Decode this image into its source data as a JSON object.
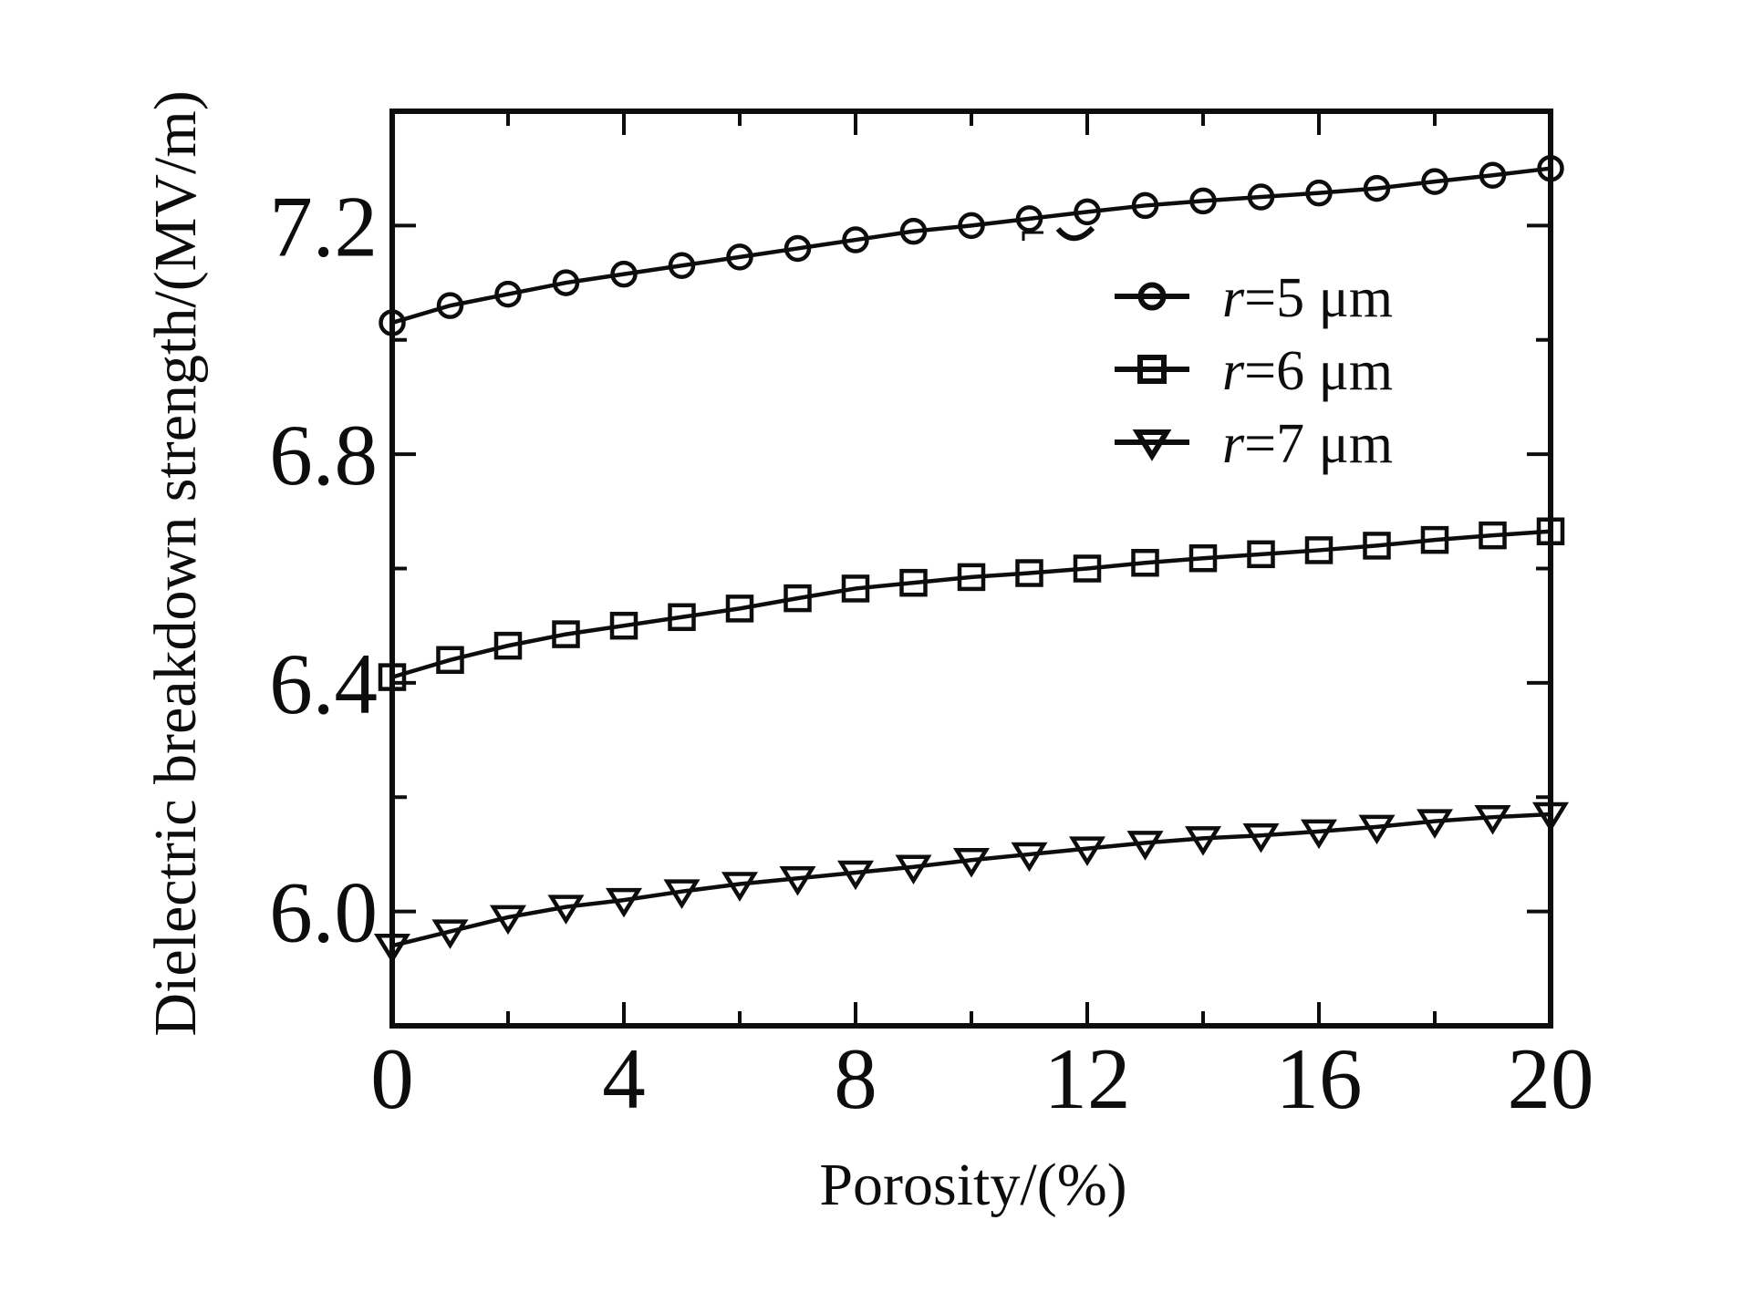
{
  "figure_background": "#ffffff",
  "ink_color": "#0d0d0d",
  "chart_data": {
    "type": "line",
    "title": "",
    "xlabel": "Porosity/(%)",
    "ylabel": "Dielectric breakdown strength/(MV/m)",
    "xlim": [
      0,
      20
    ],
    "ylim": [
      5.8,
      7.4
    ],
    "grid": false,
    "legend_position": "inside-upper-right",
    "x_major_ticks": [
      0,
      4,
      8,
      12,
      16,
      20
    ],
    "x_major_tick_labels": [
      "0",
      "4",
      "8",
      "12",
      "16",
      "20"
    ],
    "x_minor_ticks": [
      2,
      6,
      10,
      14,
      18
    ],
    "y_major_ticks": [
      6.0,
      6.4,
      6.8,
      7.2
    ],
    "y_major_tick_labels": [
      "6.0",
      "6.4",
      "6.8",
      "7.2"
    ],
    "y_minor_ticks": [
      6.2,
      6.6,
      7.0
    ],
    "x": [
      0,
      1,
      2,
      3,
      4,
      5,
      6,
      7,
      8,
      9,
      10,
      11,
      12,
      13,
      14,
      15,
      16,
      17,
      18,
      19,
      20
    ],
    "series": [
      {
        "name": "r=5 um",
        "legend_italic": "r",
        "legend_text": "=5 μm",
        "marker": "circle",
        "values": [
          7.03,
          7.06,
          7.08,
          7.1,
          7.115,
          7.13,
          7.145,
          7.16,
          7.175,
          7.19,
          7.2,
          7.212,
          7.224,
          7.235,
          7.243,
          7.25,
          7.257,
          7.265,
          7.277,
          7.288,
          7.3
        ]
      },
      {
        "name": "r=6 um",
        "legend_italic": "r",
        "legend_text": "=6 μm",
        "marker": "square",
        "values": [
          6.41,
          6.44,
          6.465,
          6.485,
          6.5,
          6.515,
          6.53,
          6.548,
          6.565,
          6.575,
          6.585,
          6.592,
          6.6,
          6.61,
          6.618,
          6.625,
          6.632,
          6.64,
          6.65,
          6.658,
          6.665
        ]
      },
      {
        "name": "r=7 um",
        "legend_italic": "r",
        "legend_text": "=7 μm",
        "marker": "triangle-down",
        "values": [
          5.94,
          5.965,
          5.99,
          6.008,
          6.02,
          6.035,
          6.048,
          6.058,
          6.068,
          6.078,
          6.09,
          6.1,
          6.11,
          6.12,
          6.128,
          6.133,
          6.14,
          6.148,
          6.158,
          6.165,
          6.17
        ]
      }
    ]
  }
}
